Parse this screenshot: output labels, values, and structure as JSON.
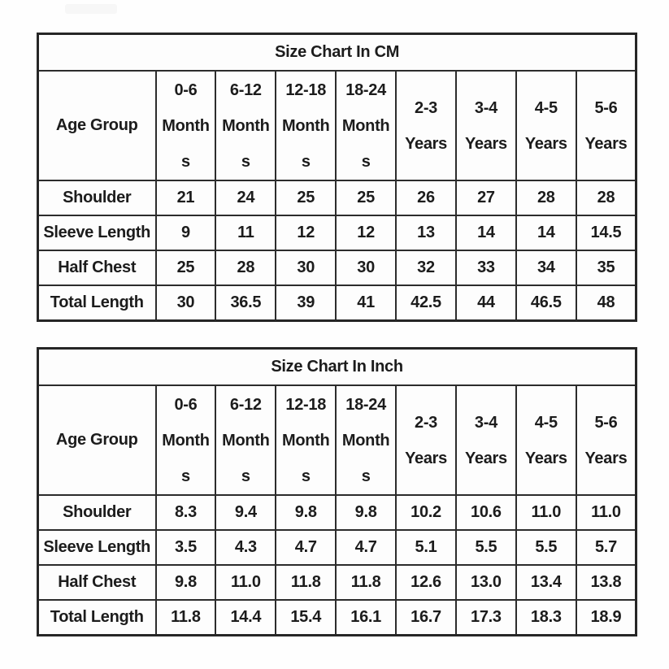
{
  "colors": {
    "background": "#fefefe",
    "table_background": "#fdfdfd",
    "border": "#2c2c2c",
    "text": "#1c1c1c",
    "badge": "#f7f7f7"
  },
  "chart_data": [
    {
      "type": "table",
      "title": "Size Chart In CM",
      "corner_label": "Age Group",
      "column_headers": [
        [
          "0-6",
          "Month",
          "s"
        ],
        [
          "6-12",
          "Month",
          "s"
        ],
        [
          "12-18",
          "Month",
          "s"
        ],
        [
          "18-24",
          "Month",
          "s"
        ],
        [
          "2-3",
          "Years"
        ],
        [
          "3-4",
          "Years"
        ],
        [
          "4-5",
          "Years"
        ],
        [
          "5-6",
          "Years"
        ]
      ],
      "row_labels": [
        "Shoulder",
        "Sleeve Length",
        "Half Chest",
        "Total Length"
      ],
      "rows": [
        [
          "21",
          "24",
          "25",
          "25",
          "26",
          "27",
          "28",
          "28"
        ],
        [
          "9",
          "11",
          "12",
          "12",
          "13",
          "14",
          "14",
          "14.5"
        ],
        [
          "25",
          "28",
          "30",
          "30",
          "32",
          "33",
          "34",
          "35"
        ],
        [
          "30",
          "36.5",
          "39",
          "41",
          "42.5",
          "44",
          "46.5",
          "48"
        ]
      ]
    },
    {
      "type": "table",
      "title": "Size Chart In Inch",
      "corner_label": "Age Group",
      "column_headers": [
        [
          "0-6",
          "Month",
          "s"
        ],
        [
          "6-12",
          "Month",
          "s"
        ],
        [
          "12-18",
          "Month",
          "s"
        ],
        [
          "18-24",
          "Month",
          "s"
        ],
        [
          "2-3",
          "Years"
        ],
        [
          "3-4",
          "Years"
        ],
        [
          "4-5",
          "Years"
        ],
        [
          "5-6",
          "Years"
        ]
      ],
      "row_labels": [
        "Shoulder",
        "Sleeve Length",
        "Half Chest",
        "Total Length"
      ],
      "rows": [
        [
          "8.3",
          "9.4",
          "9.8",
          "9.8",
          "10.2",
          "10.6",
          "11.0",
          "11.0"
        ],
        [
          "3.5",
          "4.3",
          "4.7",
          "4.7",
          "5.1",
          "5.5",
          "5.5",
          "5.7"
        ],
        [
          "9.8",
          "11.0",
          "11.8",
          "11.8",
          "12.6",
          "13.0",
          "13.4",
          "13.8"
        ],
        [
          "11.8",
          "14.4",
          "15.4",
          "16.1",
          "16.7",
          "17.3",
          "18.3",
          "18.9"
        ]
      ]
    }
  ]
}
